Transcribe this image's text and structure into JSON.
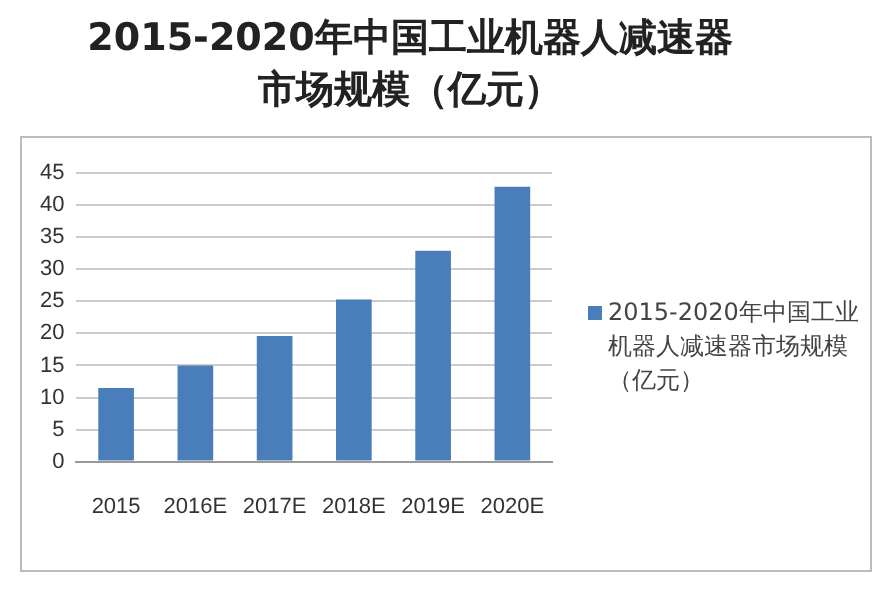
{
  "chart_data": {
    "type": "bar",
    "title": "2015-2020年中国工业机器人减速器市场规模（亿元）",
    "categories": [
      "2015",
      "2016E",
      "2017E",
      "2018E",
      "2019E",
      "2020E"
    ],
    "series": [
      {
        "name": "2015-2020年中国工业机器人减速器市场规模（亿元）",
        "color": "#4a7ebb",
        "values": [
          11.5,
          15.0,
          19.6,
          25.3,
          32.9,
          42.9
        ]
      }
    ],
    "ylim": [
      0,
      45
    ],
    "yticks": [
      0,
      5,
      10,
      15,
      20,
      25,
      30,
      35,
      40,
      45
    ],
    "grid": "y",
    "legend": "right"
  }
}
